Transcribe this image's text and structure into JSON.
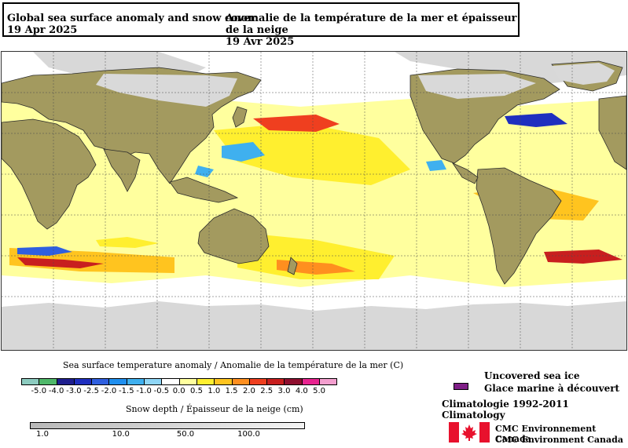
{
  "header": {
    "title_en": "Global sea surface anomaly and snow cover",
    "date_en": "19 Apr 2025",
    "title_fr": "Anomalie de la température de la mer et épaisseur de la neige",
    "date_fr": "19 Avr 2025"
  },
  "sst_legend": {
    "title": "Sea surface temperature anomaly / Anomalie de la température de la mer (C)",
    "bins": [
      {
        "label": "-5.0",
        "color": "#8ccbbf"
      },
      {
        "label": "-4.0",
        "color": "#4fb86a"
      },
      {
        "label": "-3.0",
        "color": "#1f1f8f"
      },
      {
        "label": "-2.5",
        "color": "#1f2fbf"
      },
      {
        "label": "-2.0",
        "color": "#2f5fdf"
      },
      {
        "label": "-1.5",
        "color": "#1f8fef"
      },
      {
        "label": "-1.0",
        "color": "#3fb0ef"
      },
      {
        "label": "-0.5",
        "color": "#8fd6f6"
      },
      {
        "label": "0.0",
        "color": "#ffffff"
      },
      {
        "label": "0.5",
        "color": "#ffff9e"
      },
      {
        "label": "1.0",
        "color": "#ffef2f"
      },
      {
        "label": "1.5",
        "color": "#ffc41f"
      },
      {
        "label": "2.0",
        "color": "#ff8f1f"
      },
      {
        "label": "2.5",
        "color": "#ef3f1f"
      },
      {
        "label": "3.0",
        "color": "#c81f1f"
      },
      {
        "label": "4.0",
        "color": "#8f0f2f"
      },
      {
        "label": "5.0",
        "color": "#e8238f"
      },
      {
        "label": "",
        "color": "#f49fcf"
      }
    ]
  },
  "snow_legend": {
    "title": "Snow depth / Épaisseur de la neige (cm)",
    "ticks": [
      {
        "label": "1.0",
        "frac": 0.0
      },
      {
        "label": "10.0",
        "frac": 0.285
      },
      {
        "label": "50.0",
        "frac": 0.52
      },
      {
        "label": "100.0",
        "frac": 0.75
      }
    ]
  },
  "ice_legend": {
    "label_en": "Uncovered sea ice",
    "label_fr": "Glace marine à découvert",
    "color": "#7f1f87"
  },
  "climatology": "Climatologie 1992-2011 Climatology",
  "credits": {
    "line1": "CMC Environnement Canada",
    "line2": "CMC Environment Canada",
    "flag_icon": "canada-flag-icon"
  },
  "map": {
    "ocean_color": "#ffffff",
    "land_color": "#a39a5f",
    "snow_ice_color": "#d9d9d9",
    "icons": [
      "world-map",
      "continent-outline",
      "graticule"
    ]
  }
}
